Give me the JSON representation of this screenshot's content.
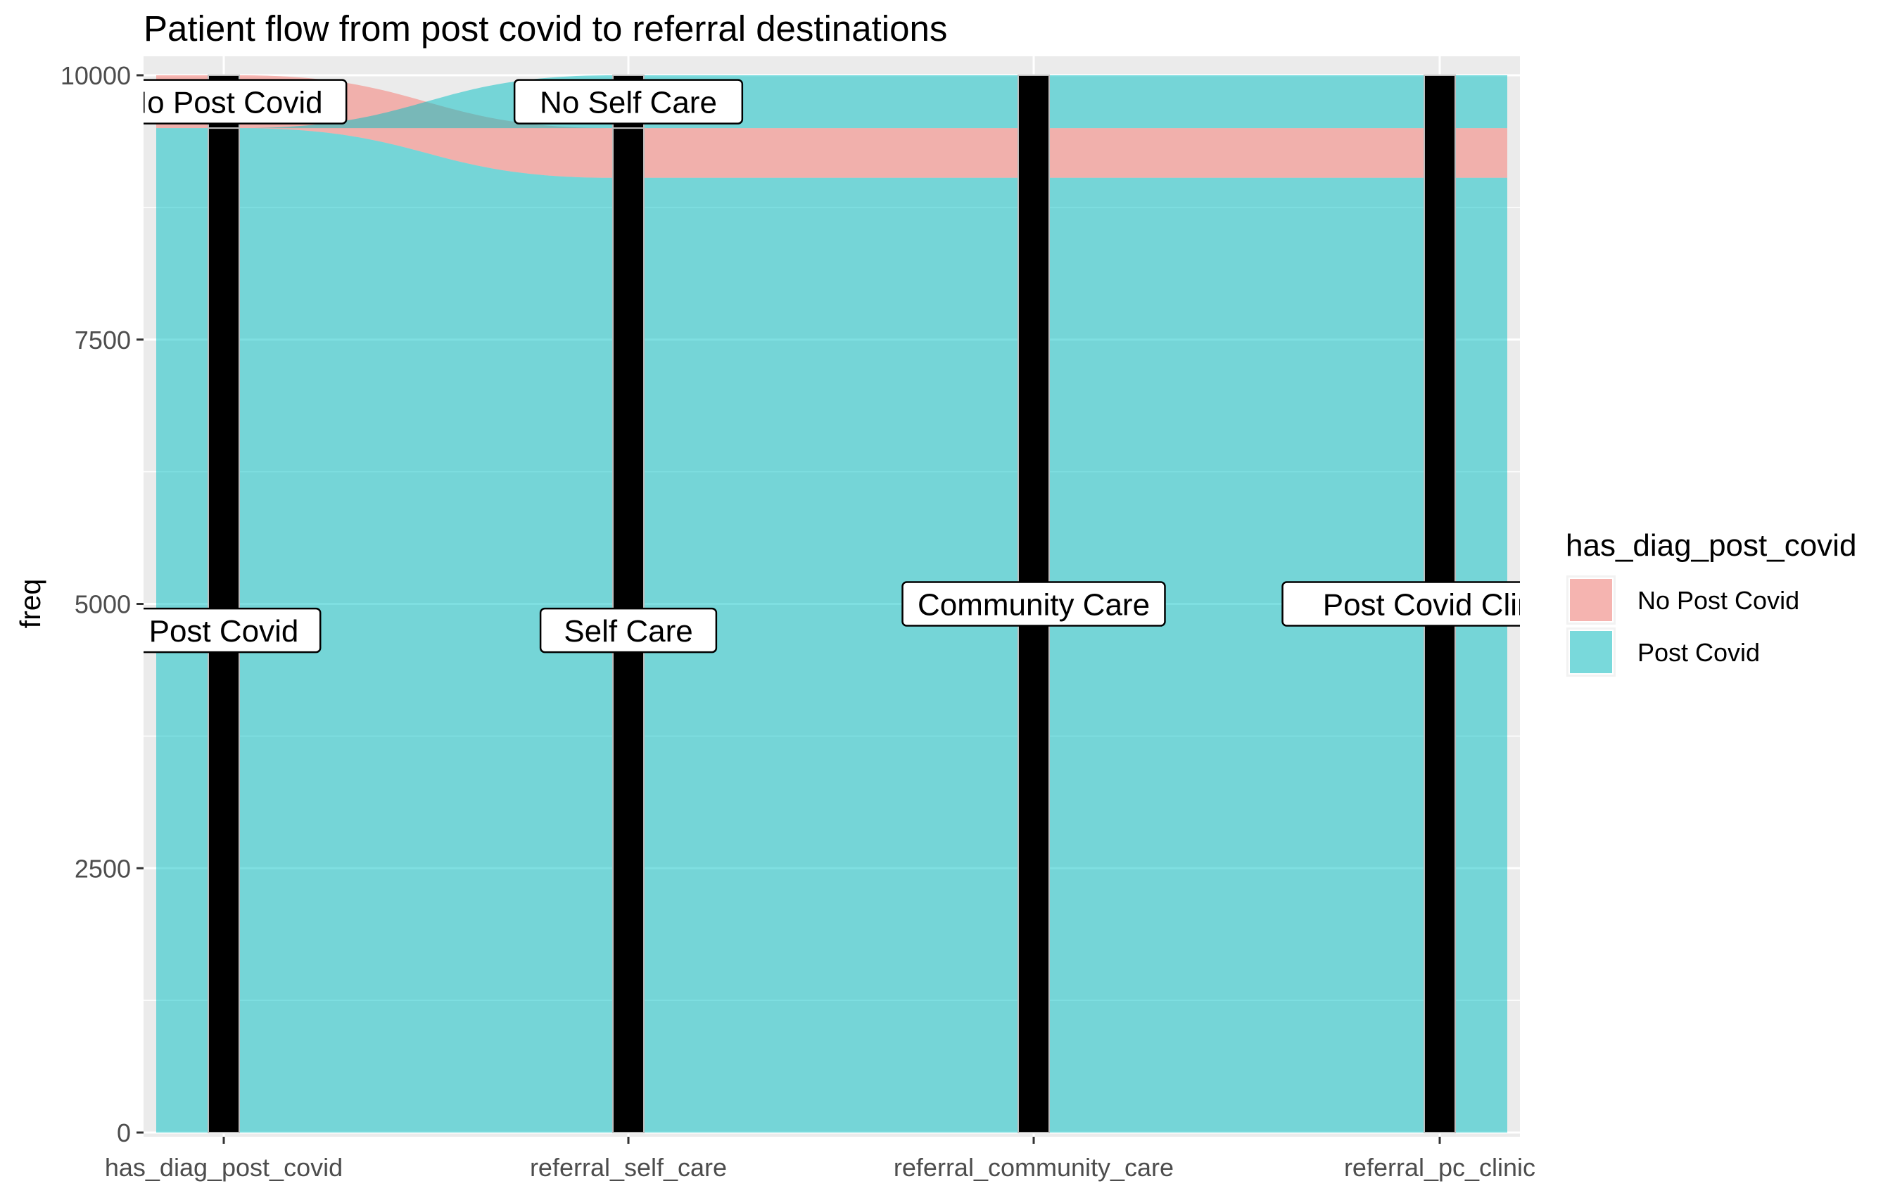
{
  "chart_data": {
    "type": "alluvial",
    "title": "Patient flow from post covid to referral destinations",
    "xlabel": "",
    "ylabel": "freq",
    "ylim": [
      0,
      10000
    ],
    "yticks": [
      0,
      2500,
      5000,
      7500,
      10000
    ],
    "grid": true,
    "legend_position": "right",
    "legend_title": "has_diag_post_covid",
    "axes": [
      "has_diag_post_covid",
      "referral_self_care",
      "referral_community_care",
      "referral_pc_clinic"
    ],
    "fill_colors": {
      "No Post Covid": "#F8766D",
      "Post Covid": "#00BFC4"
    },
    "panel_background": "#EBEBEB",
    "stratum_fill": "#000000",
    "strata": [
      {
        "axis": "has_diag_post_covid",
        "label": "No Post Covid",
        "from": 9500,
        "to": 10000
      },
      {
        "axis": "has_diag_post_covid",
        "label": "Post Covid",
        "from": 0,
        "to": 9500
      },
      {
        "axis": "referral_self_care",
        "label": "No Self Care",
        "from": 9500,
        "to": 10000
      },
      {
        "axis": "referral_self_care",
        "label": "Self Care",
        "from": 0,
        "to": 9500
      },
      {
        "axis": "referral_community_care",
        "label": "Community Care",
        "from": 0,
        "to": 10000
      },
      {
        "axis": "referral_pc_clinic",
        "label": "Post Covid Clinic",
        "from": 0,
        "to": 10000
      }
    ],
    "flows": [
      {
        "group": "No Post Covid",
        "bands": [
          [
            9500,
            10000
          ],
          [
            9030,
            9500
          ],
          [
            9030,
            9500
          ],
          [
            9030,
            9500
          ]
        ]
      },
      {
        "group": "Post Covid",
        "bands": [
          [
            0,
            9500
          ],
          [
            0,
            9030
          ],
          [
            0,
            9030
          ],
          [
            0,
            9030
          ]
        ]
      },
      {
        "group": "Post Covid",
        "bands": [
          [
            9500,
            9500
          ],
          [
            9500,
            10000
          ],
          [
            9500,
            10000
          ],
          [
            9500,
            10000
          ]
        ]
      }
    ]
  }
}
